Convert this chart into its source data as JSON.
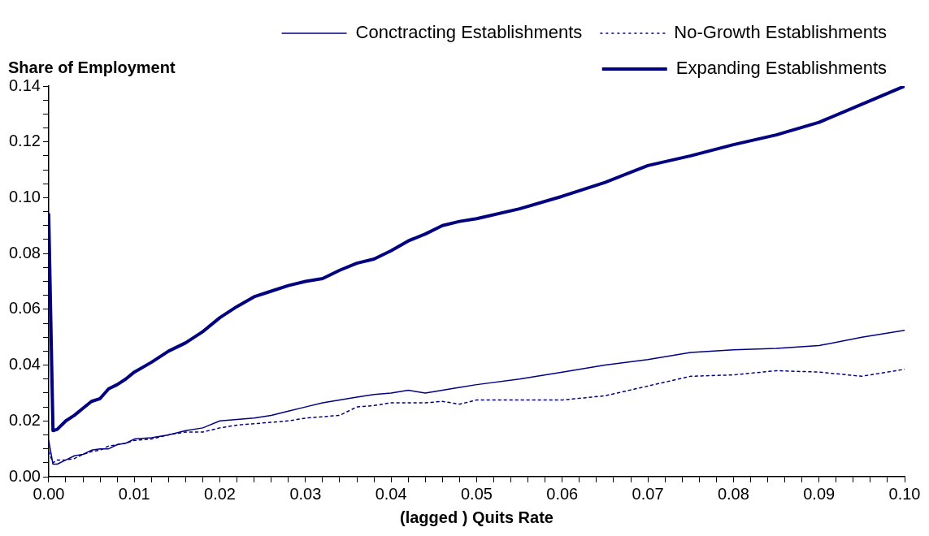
{
  "chart_data": {
    "type": "line",
    "xlabel": "(lagged ) Quits Rate",
    "ylabel": "Share of Employment",
    "legend": "top",
    "grid": false,
    "marker": "none",
    "x": [
      0,
      0.0005,
      0.001,
      0.002,
      0.003,
      0.004,
      0.005,
      0.006,
      0.007,
      0.008,
      0.009,
      0.01,
      0.012,
      0.014,
      0.016,
      0.018,
      0.02,
      0.022,
      0.024,
      0.026,
      0.028,
      0.03,
      0.032,
      0.034,
      0.036,
      0.038,
      0.04,
      0.042,
      0.044,
      0.046,
      0.048,
      0.05,
      0.055,
      0.06,
      0.065,
      0.07,
      0.075,
      0.08,
      0.085,
      0.09,
      0.095,
      0.1
    ],
    "xlim": [
      0,
      0.1
    ],
    "xticks": [
      {
        "value": 0,
        "label": "0.00"
      },
      {
        "value": 0.002,
        "label": null
      },
      {
        "value": 0.004,
        "label": null
      },
      {
        "value": 0.006,
        "label": null
      },
      {
        "value": 0.008,
        "label": null
      },
      {
        "value": 0.01,
        "label": "0.01"
      },
      {
        "value": 0.012,
        "label": null
      },
      {
        "value": 0.014,
        "label": null
      },
      {
        "value": 0.016,
        "label": null
      },
      {
        "value": 0.018,
        "label": null
      },
      {
        "value": 0.02,
        "label": "0.02"
      },
      {
        "value": 0.022,
        "label": null
      },
      {
        "value": 0.024,
        "label": null
      },
      {
        "value": 0.026,
        "label": null
      },
      {
        "value": 0.028,
        "label": null
      },
      {
        "value": 0.03,
        "label": "0.03"
      },
      {
        "value": 0.032,
        "label": null
      },
      {
        "value": 0.034,
        "label": null
      },
      {
        "value": 0.036,
        "label": null
      },
      {
        "value": 0.038,
        "label": null
      },
      {
        "value": 0.04,
        "label": "0.04"
      },
      {
        "value": 0.042,
        "label": null
      },
      {
        "value": 0.044,
        "label": null
      },
      {
        "value": 0.046,
        "label": null
      },
      {
        "value": 0.048,
        "label": null
      },
      {
        "value": 0.05,
        "label": "0.05"
      },
      {
        "value": 0.052,
        "label": null
      },
      {
        "value": 0.054,
        "label": null
      },
      {
        "value": 0.056,
        "label": null
      },
      {
        "value": 0.058,
        "label": null
      },
      {
        "value": 0.06,
        "label": "0.06"
      },
      {
        "value": 0.062,
        "label": null
      },
      {
        "value": 0.064,
        "label": null
      },
      {
        "value": 0.066,
        "label": null
      },
      {
        "value": 0.068,
        "label": null
      },
      {
        "value": 0.07,
        "label": "0.07"
      },
      {
        "value": 0.072,
        "label": null
      },
      {
        "value": 0.074,
        "label": null
      },
      {
        "value": 0.076,
        "label": null
      },
      {
        "value": 0.078,
        "label": null
      },
      {
        "value": 0.08,
        "label": "0.08"
      },
      {
        "value": 0.082,
        "label": null
      },
      {
        "value": 0.084,
        "label": null
      },
      {
        "value": 0.086,
        "label": null
      },
      {
        "value": 0.088,
        "label": null
      },
      {
        "value": 0.09,
        "label": "0.09"
      },
      {
        "value": 0.092,
        "label": null
      },
      {
        "value": 0.094,
        "label": null
      },
      {
        "value": 0.096,
        "label": null
      },
      {
        "value": 0.098,
        "label": null
      },
      {
        "value": 0.1,
        "label": "0.10"
      }
    ],
    "ylim": [
      0,
      0.14
    ],
    "yticks": [
      {
        "value": 0,
        "label": "0.00"
      },
      {
        "value": 0.005,
        "label": null
      },
      {
        "value": 0.01,
        "label": null
      },
      {
        "value": 0.015,
        "label": null
      },
      {
        "value": 0.02,
        "label": "0.02"
      },
      {
        "value": 0.025,
        "label": null
      },
      {
        "value": 0.03,
        "label": null
      },
      {
        "value": 0.035,
        "label": null
      },
      {
        "value": 0.04,
        "label": "0.04"
      },
      {
        "value": 0.045,
        "label": null
      },
      {
        "value": 0.05,
        "label": null
      },
      {
        "value": 0.055,
        "label": null
      },
      {
        "value": 0.06,
        "label": "0.06"
      },
      {
        "value": 0.065,
        "label": null
      },
      {
        "value": 0.07,
        "label": null
      },
      {
        "value": 0.075,
        "label": null
      },
      {
        "value": 0.08,
        "label": "0.08"
      },
      {
        "value": 0.085,
        "label": null
      },
      {
        "value": 0.09,
        "label": null
      },
      {
        "value": 0.095,
        "label": null
      },
      {
        "value": 0.1,
        "label": "0.10"
      },
      {
        "value": 0.105,
        "label": null
      },
      {
        "value": 0.11,
        "label": null
      },
      {
        "value": 0.115,
        "label": null
      },
      {
        "value": 0.12,
        "label": "0.12"
      },
      {
        "value": 0.125,
        "label": null
      },
      {
        "value": 0.13,
        "label": null
      },
      {
        "value": 0.135,
        "label": null
      },
      {
        "value": 0.14,
        "label": "0.14"
      }
    ],
    "series": [
      {
        "name": "Conctracting Establishments",
        "color": "#000080",
        "line_style": "solid",
        "values": [
          0.013,
          0.0045,
          0.0045,
          0.006,
          0.0075,
          0.008,
          0.0095,
          0.01,
          0.01,
          0.0115,
          0.012,
          0.0135,
          0.014,
          0.015,
          0.0165,
          0.0175,
          0.02,
          0.0205,
          0.021,
          0.022,
          0.0235,
          0.025,
          0.0265,
          0.0275,
          0.0285,
          0.0295,
          0.03,
          0.031,
          0.03,
          0.031,
          0.032,
          0.033,
          0.035,
          0.0375,
          0.04,
          0.042,
          0.0445,
          0.0455,
          0.046,
          0.047,
          0.05,
          0.0525
        ]
      },
      {
        "name": "No-Growth Establishments",
        "color": "#000080",
        "line_style": "dotted",
        "values": [
          0.009,
          0.005,
          0.006,
          0.006,
          0.0065,
          0.008,
          0.009,
          0.0095,
          0.011,
          0.0115,
          0.012,
          0.013,
          0.0135,
          0.015,
          0.016,
          0.016,
          0.0175,
          0.0185,
          0.019,
          0.0195,
          0.02,
          0.021,
          0.0215,
          0.022,
          0.025,
          0.0255,
          0.0265,
          0.0265,
          0.0265,
          0.027,
          0.026,
          0.0275,
          0.0275,
          0.0275,
          0.029,
          0.0325,
          0.036,
          0.0365,
          0.038,
          0.0375,
          0.036,
          0.0385
        ]
      },
      {
        "name": "Expanding Establishments",
        "color": "#000080",
        "line_style": "solid",
        "values": [
          0.094,
          0.0165,
          0.017,
          0.02,
          0.022,
          0.0245,
          0.027,
          0.028,
          0.0315,
          0.033,
          0.035,
          0.0375,
          0.041,
          0.045,
          0.048,
          0.052,
          0.057,
          0.061,
          0.0645,
          0.0665,
          0.0685,
          0.07,
          0.071,
          0.074,
          0.0765,
          0.078,
          0.081,
          0.0845,
          0.087,
          0.09,
          0.0915,
          0.0925,
          0.096,
          0.1005,
          0.1055,
          0.1115,
          0.115,
          0.119,
          0.1225,
          0.127,
          0.1335,
          0.14
        ]
      }
    ]
  }
}
